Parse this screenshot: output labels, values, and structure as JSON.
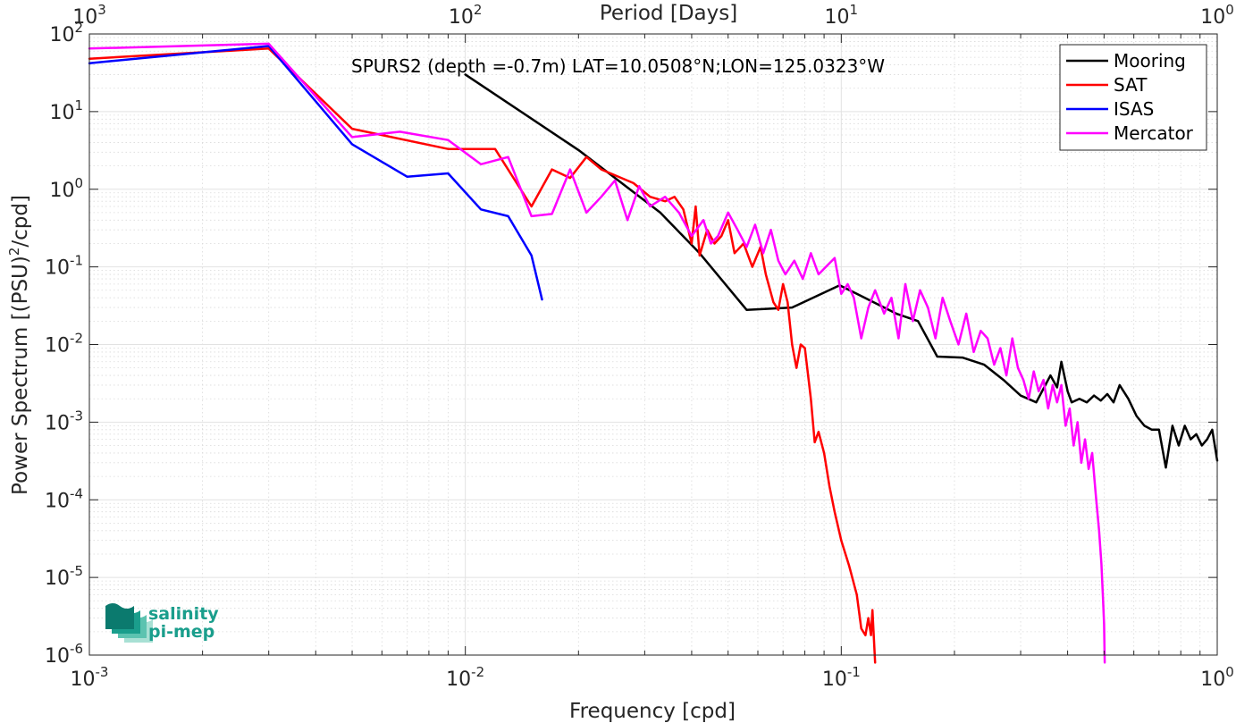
{
  "chart_data": {
    "type": "line",
    "title": "",
    "annotation": "SPURS2 (depth =-0.7m) LAT=10.0508°N;LON=125.0323°W",
    "xlabel": "Frequency [cpd]",
    "ylabel": "Power Spectrum [(PSU)²/cpd]",
    "ylabel_parts": {
      "main": "Power Spectrum [(PSU)",
      "sup": "2",
      "end": "/cpd]"
    },
    "x2label": "Period [Days]",
    "xscale": "log",
    "yscale": "log",
    "xlim": [
      0.001,
      1
    ],
    "ylim": [
      1e-06,
      100
    ],
    "grid": true,
    "legend_position": "top-right",
    "x_ticks": [
      {
        "value": 0.001,
        "base": "10",
        "exp": "-3"
      },
      {
        "value": 0.01,
        "base": "10",
        "exp": "-2"
      },
      {
        "value": 0.1,
        "base": "10",
        "exp": "-1"
      },
      {
        "value": 1,
        "base": "10",
        "exp": "0"
      }
    ],
    "x2_ticks": [
      {
        "value": 0.001,
        "base": "10",
        "exp": "3"
      },
      {
        "value": 0.01,
        "base": "10",
        "exp": "2"
      },
      {
        "value": 0.1,
        "base": "10",
        "exp": "1"
      },
      {
        "value": 1,
        "base": "10",
        "exp": "0"
      }
    ],
    "y_ticks": [
      {
        "value": 100,
        "base": "10",
        "exp": "2"
      },
      {
        "value": 10,
        "base": "10",
        "exp": "1"
      },
      {
        "value": 1,
        "base": "10",
        "exp": "0"
      },
      {
        "value": 0.1,
        "base": "10",
        "exp": "-1"
      },
      {
        "value": 0.01,
        "base": "10",
        "exp": "-2"
      },
      {
        "value": 0.001,
        "base": "10",
        "exp": "-3"
      },
      {
        "value": 0.0001,
        "base": "10",
        "exp": "-4"
      },
      {
        "value": 1e-05,
        "base": "10",
        "exp": "-5"
      },
      {
        "value": 1e-06,
        "base": "10",
        "exp": "-6"
      }
    ],
    "series": [
      {
        "name": "Mooring",
        "color": "#000000",
        "points": [
          [
            0.01,
            30
          ],
          [
            0.02,
            3.2
          ],
          [
            0.033,
            0.5
          ],
          [
            0.042,
            0.15
          ],
          [
            0.056,
            0.028
          ],
          [
            0.074,
            0.03
          ],
          [
            0.099,
            0.058
          ],
          [
            0.11,
            0.045
          ],
          [
            0.14,
            0.025
          ],
          [
            0.16,
            0.02
          ],
          [
            0.18,
            0.007
          ],
          [
            0.21,
            0.0068
          ],
          [
            0.24,
            0.0055
          ],
          [
            0.27,
            0.0035
          ],
          [
            0.3,
            0.0022
          ],
          [
            0.33,
            0.0018
          ],
          [
            0.36,
            0.004
          ],
          [
            0.375,
            0.0028
          ],
          [
            0.385,
            0.006
          ],
          [
            0.4,
            0.0025
          ],
          [
            0.41,
            0.0018
          ],
          [
            0.43,
            0.002
          ],
          [
            0.45,
            0.0018
          ],
          [
            0.47,
            0.0022
          ],
          [
            0.49,
            0.0019
          ],
          [
            0.51,
            0.0023
          ],
          [
            0.53,
            0.0018
          ],
          [
            0.55,
            0.003
          ],
          [
            0.58,
            0.002
          ],
          [
            0.61,
            0.0012
          ],
          [
            0.64,
            0.0009
          ],
          [
            0.67,
            0.0008
          ],
          [
            0.7,
            0.0008
          ],
          [
            0.73,
            0.00026
          ],
          [
            0.76,
            0.0009
          ],
          [
            0.79,
            0.0005
          ],
          [
            0.82,
            0.0009
          ],
          [
            0.85,
            0.0006
          ],
          [
            0.88,
            0.0007
          ],
          [
            0.91,
            0.0005
          ],
          [
            0.94,
            0.0006
          ],
          [
            0.97,
            0.0008
          ],
          [
            1.0,
            0.00032
          ]
        ]
      },
      {
        "name": "SAT",
        "color": "#ff0000",
        "points": [
          [
            0.001,
            48
          ],
          [
            0.003,
            65
          ],
          [
            0.005,
            6.0
          ],
          [
            0.009,
            3.3
          ],
          [
            0.012,
            3.3
          ],
          [
            0.015,
            0.6
          ],
          [
            0.017,
            1.8
          ],
          [
            0.019,
            1.4
          ],
          [
            0.021,
            2.6
          ],
          [
            0.023,
            1.8
          ],
          [
            0.028,
            1.2
          ],
          [
            0.031,
            0.8
          ],
          [
            0.034,
            0.7
          ],
          [
            0.036,
            0.8
          ],
          [
            0.038,
            0.55
          ],
          [
            0.04,
            0.2
          ],
          [
            0.041,
            0.6
          ],
          [
            0.042,
            0.14
          ],
          [
            0.044,
            0.3
          ],
          [
            0.046,
            0.2
          ],
          [
            0.048,
            0.25
          ],
          [
            0.05,
            0.4
          ],
          [
            0.052,
            0.15
          ],
          [
            0.055,
            0.2
          ],
          [
            0.058,
            0.1
          ],
          [
            0.061,
            0.18
          ],
          [
            0.063,
            0.08
          ],
          [
            0.066,
            0.035
          ],
          [
            0.068,
            0.028
          ],
          [
            0.07,
            0.06
          ],
          [
            0.072,
            0.035
          ],
          [
            0.074,
            0.01
          ],
          [
            0.076,
            0.005
          ],
          [
            0.078,
            0.01
          ],
          [
            0.08,
            0.009
          ],
          [
            0.083,
            0.002
          ],
          [
            0.085,
            0.00055
          ],
          [
            0.087,
            0.00075
          ],
          [
            0.09,
            0.0004
          ],
          [
            0.093,
            0.00015
          ],
          [
            0.096,
            7e-05
          ],
          [
            0.1,
            3e-05
          ],
          [
            0.105,
            1.4e-05
          ],
          [
            0.11,
            6e-06
          ],
          [
            0.113,
            2.2e-06
          ],
          [
            0.116,
            1.8e-06
          ],
          [
            0.118,
            3e-06
          ],
          [
            0.12,
            1.8e-06
          ],
          [
            0.121,
            3.8e-06
          ],
          [
            0.123,
            8e-07
          ]
        ]
      },
      {
        "name": "ISAS",
        "color": "#0000ff",
        "points": [
          [
            0.001,
            42
          ],
          [
            0.003,
            70
          ],
          [
            0.005,
            3.8
          ],
          [
            0.007,
            1.45
          ],
          [
            0.009,
            1.6
          ],
          [
            0.011,
            0.55
          ],
          [
            0.013,
            0.45
          ],
          [
            0.015,
            0.14
          ],
          [
            0.016,
            0.038
          ]
        ]
      },
      {
        "name": "Mercator",
        "color": "#ff00ff",
        "points": [
          [
            0.001,
            65
          ],
          [
            0.003,
            75
          ],
          [
            0.005,
            4.7
          ],
          [
            0.0067,
            5.5
          ],
          [
            0.009,
            4.3
          ],
          [
            0.011,
            2.1
          ],
          [
            0.013,
            2.6
          ],
          [
            0.015,
            0.45
          ],
          [
            0.017,
            0.48
          ],
          [
            0.019,
            1.8
          ],
          [
            0.021,
            0.5
          ],
          [
            0.023,
            0.8
          ],
          [
            0.025,
            1.3
          ],
          [
            0.027,
            0.4
          ],
          [
            0.029,
            1.1
          ],
          [
            0.031,
            0.6
          ],
          [
            0.034,
            0.8
          ],
          [
            0.037,
            0.5
          ],
          [
            0.04,
            0.25
          ],
          [
            0.043,
            0.4
          ],
          [
            0.045,
            0.2
          ],
          [
            0.047,
            0.25
          ],
          [
            0.05,
            0.5
          ],
          [
            0.053,
            0.3
          ],
          [
            0.056,
            0.18
          ],
          [
            0.059,
            0.35
          ],
          [
            0.062,
            0.15
          ],
          [
            0.065,
            0.3
          ],
          [
            0.068,
            0.12
          ],
          [
            0.071,
            0.08
          ],
          [
            0.075,
            0.12
          ],
          [
            0.079,
            0.07
          ],
          [
            0.083,
            0.15
          ],
          [
            0.087,
            0.08
          ],
          [
            0.091,
            0.1
          ],
          [
            0.096,
            0.13
          ],
          [
            0.1,
            0.045
          ],
          [
            0.104,
            0.06
          ],
          [
            0.108,
            0.04
          ],
          [
            0.113,
            0.012
          ],
          [
            0.118,
            0.03
          ],
          [
            0.123,
            0.05
          ],
          [
            0.13,
            0.025
          ],
          [
            0.136,
            0.04
          ],
          [
            0.142,
            0.012
          ],
          [
            0.148,
            0.06
          ],
          [
            0.155,
            0.02
          ],
          [
            0.162,
            0.05
          ],
          [
            0.17,
            0.03
          ],
          [
            0.178,
            0.012
          ],
          [
            0.186,
            0.04
          ],
          [
            0.195,
            0.02
          ],
          [
            0.205,
            0.01
          ],
          [
            0.215,
            0.025
          ],
          [
            0.225,
            0.008
          ],
          [
            0.235,
            0.015
          ],
          [
            0.245,
            0.012
          ],
          [
            0.255,
            0.0055
          ],
          [
            0.265,
            0.009
          ],
          [
            0.275,
            0.004
          ],
          [
            0.285,
            0.012
          ],
          [
            0.295,
            0.005
          ],
          [
            0.305,
            0.0035
          ],
          [
            0.315,
            0.002
          ],
          [
            0.325,
            0.0045
          ],
          [
            0.335,
            0.0025
          ],
          [
            0.345,
            0.0035
          ],
          [
            0.355,
            0.0015
          ],
          [
            0.365,
            0.003
          ],
          [
            0.375,
            0.0018
          ],
          [
            0.385,
            0.003
          ],
          [
            0.395,
            0.0009
          ],
          [
            0.405,
            0.0015
          ],
          [
            0.415,
            0.0005
          ],
          [
            0.425,
            0.001
          ],
          [
            0.435,
            0.0003
          ],
          [
            0.445,
            0.0006
          ],
          [
            0.455,
            0.00025
          ],
          [
            0.465,
            0.0004
          ],
          [
            0.475,
            0.00012
          ],
          [
            0.485,
            4e-05
          ],
          [
            0.492,
            1.5e-05
          ],
          [
            0.497,
            5e-06
          ],
          [
            0.5,
            2.5e-06
          ],
          [
            0.502,
            8e-07
          ]
        ]
      }
    ]
  },
  "logo": {
    "line1": "salinity",
    "line2": "pi-mep",
    "colors": [
      "#0b7a6e",
      "#1a9e8c",
      "#5cc3b0",
      "#a8e0d4"
    ]
  }
}
